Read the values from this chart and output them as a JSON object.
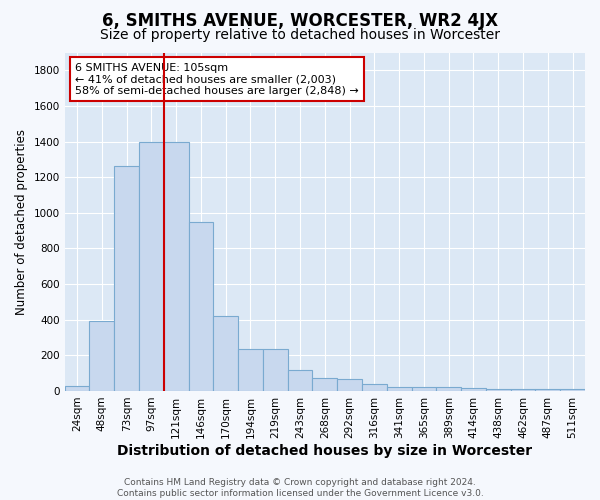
{
  "title": "6, SMITHS AVENUE, WORCESTER, WR2 4JX",
  "subtitle": "Size of property relative to detached houses in Worcester",
  "xlabel": "Distribution of detached houses by size in Worcester",
  "ylabel": "Number of detached properties",
  "bin_labels": [
    "24sqm",
    "48sqm",
    "73sqm",
    "97sqm",
    "121sqm",
    "146sqm",
    "170sqm",
    "194sqm",
    "219sqm",
    "243sqm",
    "268sqm",
    "292sqm",
    "316sqm",
    "341sqm",
    "365sqm",
    "389sqm",
    "414sqm",
    "438sqm",
    "462sqm",
    "487sqm",
    "511sqm"
  ],
  "values": [
    28,
    395,
    1265,
    1400,
    1400,
    950,
    420,
    235,
    235,
    115,
    70,
    65,
    40,
    20,
    20,
    20,
    15,
    10,
    10,
    10,
    10
  ],
  "bar_color": "#c8d8ee",
  "bar_edge_color": "#7aaad0",
  "bar_width": 1.0,
  "red_line_x": 3.5,
  "red_line_color": "#cc0000",
  "annotation_text": "6 SMITHS AVENUE: 105sqm\n← 41% of detached houses are smaller (2,003)\n58% of semi-detached houses are larger (2,848) →",
  "annotation_box_facecolor": "#ffffff",
  "annotation_box_edgecolor": "#cc0000",
  "ylim": [
    0,
    1900
  ],
  "yticks": [
    0,
    200,
    400,
    600,
    800,
    1000,
    1200,
    1400,
    1600,
    1800
  ],
  "bg_color": "#dce8f5",
  "grid_color": "#ffffff",
  "fig_bg_color": "#f5f8fd",
  "footer_text": "Contains HM Land Registry data © Crown copyright and database right 2024.\nContains public sector information licensed under the Government Licence v3.0.",
  "title_fontsize": 12,
  "subtitle_fontsize": 10,
  "xlabel_fontsize": 10,
  "ylabel_fontsize": 8.5,
  "tick_fontsize": 7.5,
  "annotation_fontsize": 8,
  "footer_fontsize": 6.5
}
